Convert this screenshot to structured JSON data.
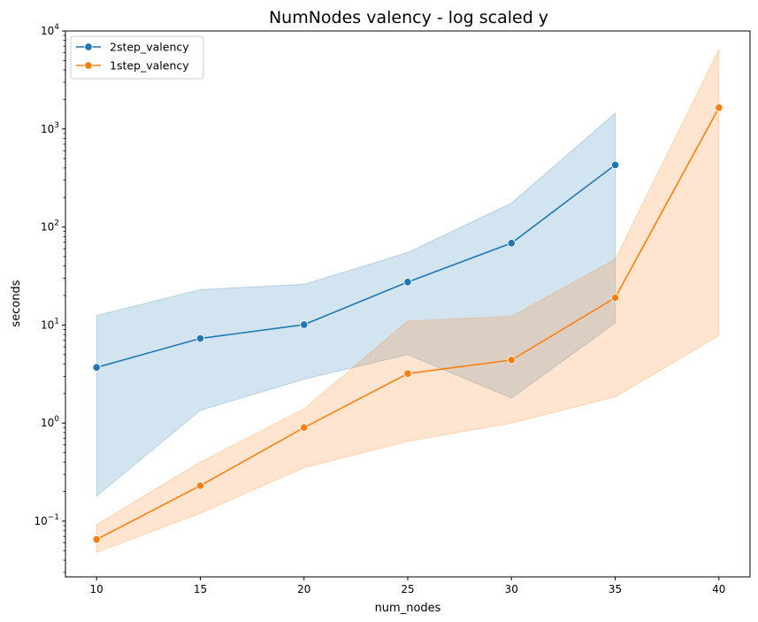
{
  "chart_data": {
    "type": "line",
    "title": "NumNodes valency - log scaled y",
    "xlabel": "num_nodes",
    "ylabel": "seconds",
    "yscale": "log",
    "xlim": [
      8.5,
      41.5
    ],
    "ylim": [
      0.027,
      10000
    ],
    "xticks": [
      10,
      15,
      20,
      25,
      30,
      35,
      40
    ],
    "yticks": [
      {
        "value": 0.1,
        "base": "10",
        "exp": "−1"
      },
      {
        "value": 1,
        "base": "10",
        "exp": "0"
      },
      {
        "value": 10,
        "base": "10",
        "exp": "1"
      },
      {
        "value": 100,
        "base": "10",
        "exp": "2"
      },
      {
        "value": 1000,
        "base": "10",
        "exp": "3"
      },
      {
        "value": 10000,
        "base": "10",
        "exp": "4"
      }
    ],
    "legend_position": "top-left",
    "grid": false,
    "series": [
      {
        "name": "2step_valency",
        "color": "#1f77b4",
        "x": [
          10,
          15,
          20,
          25,
          30,
          35
        ],
        "y": [
          3.7,
          7.3,
          10.1,
          27.5,
          68.5,
          430
        ],
        "ci_low": [
          0.18,
          1.35,
          2.8,
          5.0,
          1.8,
          10.5
        ],
        "ci_high": [
          12.5,
          23,
          26,
          55,
          175,
          1450
        ]
      },
      {
        "name": "1step_valency",
        "color": "#ff7f0e",
        "x": [
          10,
          15,
          20,
          25,
          30,
          35,
          40
        ],
        "y": [
          0.065,
          0.23,
          0.9,
          3.2,
          4.4,
          19,
          1650
        ],
        "ci_low": [
          0.048,
          0.12,
          0.35,
          0.65,
          1.0,
          1.85,
          7.8
        ],
        "ci_high": [
          0.092,
          0.4,
          1.4,
          11,
          12.3,
          47,
          6500
        ]
      }
    ]
  }
}
